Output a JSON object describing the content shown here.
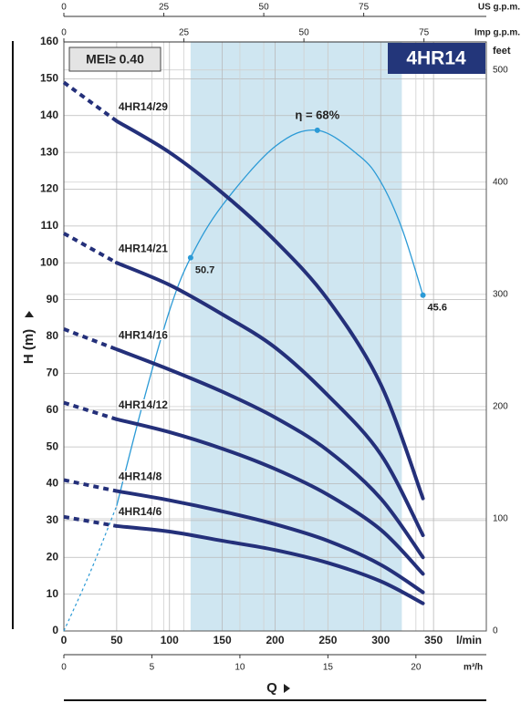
{
  "chart_data": {
    "type": "line",
    "badge": "4HR14",
    "mei": "MEI≥ 0.40",
    "xlabel": "l/min",
    "ylabel": "H (m)",
    "qlabel": "Q",
    "y2label": "feet",
    "x": [
      0,
      50,
      100,
      150,
      200,
      250,
      300,
      340
    ],
    "xlim": [
      0,
      400
    ],
    "xticks": [
      0,
      50,
      100,
      150,
      200,
      250,
      300,
      350
    ],
    "ylim": [
      0,
      160
    ],
    "yticks": [
      0,
      10,
      20,
      30,
      40,
      50,
      60,
      70,
      80,
      90,
      100,
      110,
      120,
      130,
      140,
      150,
      160
    ],
    "y2lim": [
      0,
      524.93
    ],
    "y2ticks": [
      0,
      100,
      200,
      300,
      400,
      500
    ],
    "top_axes": [
      {
        "label": "US g.p.m.",
        "lim": [
          0,
          105.67
        ],
        "ticks": [
          0,
          25,
          50,
          75
        ]
      },
      {
        "label": "Imp g.p.m.",
        "lim": [
          0,
          87.99
        ],
        "ticks": [
          0,
          25,
          50,
          75
        ]
      }
    ],
    "bottom_axis": {
      "label": "m³/h",
      "lim": [
        0,
        24
      ],
      "ticks": [
        0,
        5,
        10,
        15,
        20
      ]
    },
    "recommended_range": [
      120,
      320
    ],
    "range_color": "#cfe6f1",
    "grid": true,
    "series": [
      {
        "name": "4HR14/29",
        "color": "#24307a",
        "values": [
          149,
          138.5,
          130,
          119,
          106,
          90,
          67,
          36
        ]
      },
      {
        "name": "4HR14/21",
        "color": "#24307a",
        "values": [
          108,
          100,
          94,
          86,
          77,
          64,
          48,
          26
        ]
      },
      {
        "name": "4HR14/16",
        "color": "#24307a",
        "values": [
          82,
          76.5,
          71,
          65,
          58,
          49,
          36,
          20
        ]
      },
      {
        "name": "4HR14/12",
        "color": "#24307a",
        "values": [
          62,
          57.5,
          54,
          49.5,
          44,
          37,
          27.5,
          15.5
        ]
      },
      {
        "name": "4HR14/8",
        "color": "#24307a",
        "values": [
          41,
          38,
          35.5,
          32.5,
          29,
          24.5,
          18,
          10.5
        ]
      },
      {
        "name": "4HR14/6",
        "color": "#24307a",
        "values": [
          31,
          28.5,
          27,
          24.5,
          22,
          18.5,
          13.5,
          7.5
        ]
      }
    ],
    "efficiency": {
      "color": "#2b9ad6",
      "lim": [
        0,
        80
      ],
      "x": [
        0,
        25,
        50,
        75,
        100,
        120,
        150,
        200,
        240,
        280,
        300,
        320,
        340
      ],
      "values": [
        0,
        8,
        17,
        31,
        43.5,
        50.7,
        57.8,
        65.8,
        68,
        64.5,
        61,
        54.7,
        45.6
      ],
      "points": {
        "x": [
          120,
          240,
          340
        ],
        "values": [
          50.7,
          68,
          45.6
        ],
        "value_labels": [
          "50.7",
          "η = 68%",
          "45.6"
        ]
      }
    }
  }
}
